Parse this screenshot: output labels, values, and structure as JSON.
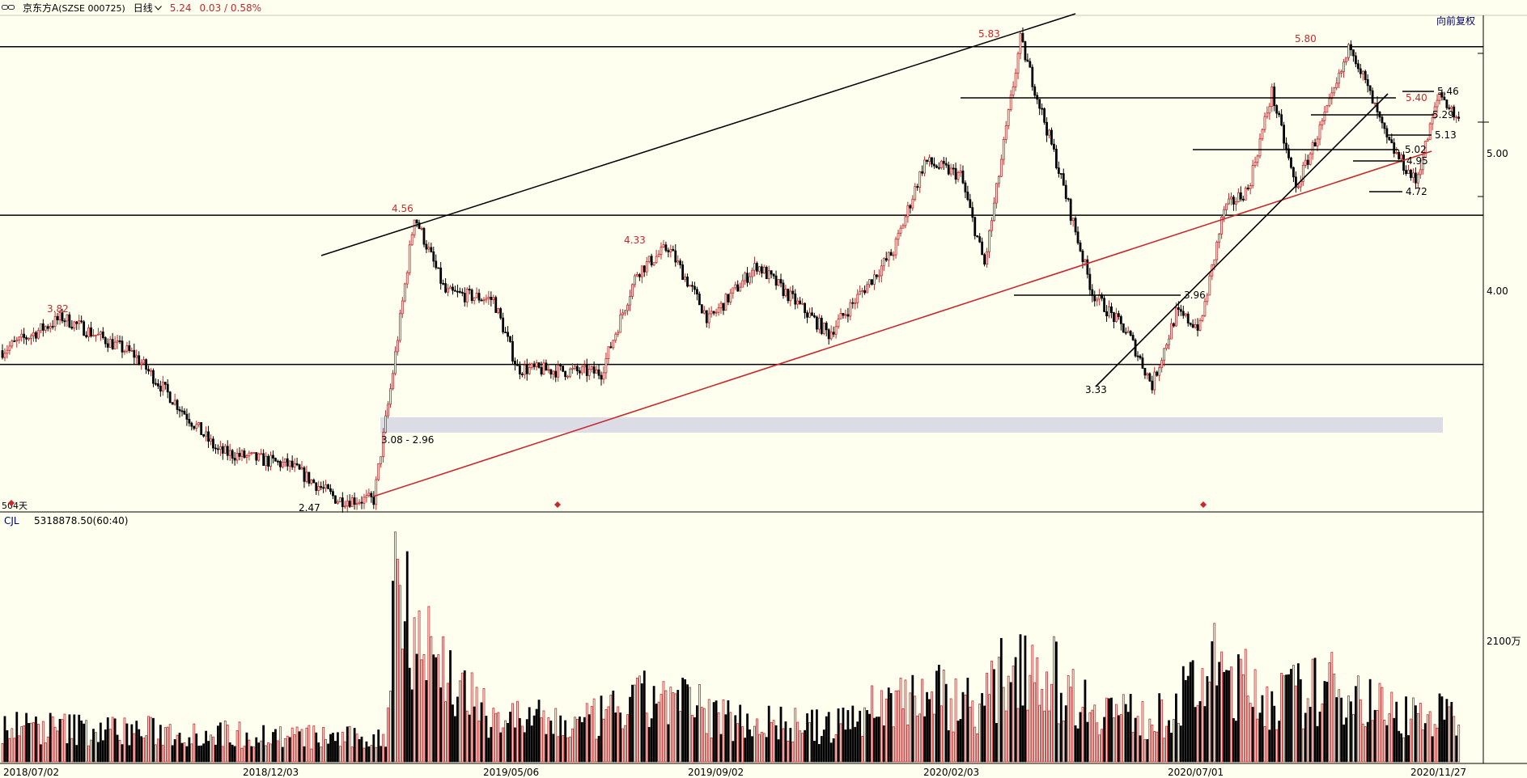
{
  "header": {
    "symbol_icon": "link-icon",
    "stock_name": "京东方A",
    "stock_code": "(SZSE 000725)",
    "period": "日线",
    "price": "5.24",
    "change": "0.03 / 0.58%"
  },
  "toolbar": {
    "adjust_label": "向前复权"
  },
  "volume_panel": {
    "indicator": "CJL",
    "value": "5318878.50(60:40)"
  },
  "marker_text": "504天",
  "colors": {
    "background": "#fffff0",
    "up": "#c0282d",
    "down": "#000000",
    "trend_red": "#c8282d",
    "zone": "#dcdce6"
  },
  "chart_data": {
    "type": "candlestick",
    "x_ticks": [
      "2018/07/02",
      "2018/12/03",
      "2019/05/06",
      "2019/09/02",
      "2020/02/03",
      "2020/07/01",
      "2020/11/27"
    ],
    "price_axis": {
      "ticks": [
        "5.00",
        "4.00"
      ]
    },
    "volume_axis": {
      "ticks": [
        "2100万"
      ]
    },
    "key_prices": [
      {
        "label": "3.82"
      },
      {
        "label": "2.47"
      },
      {
        "label": "4.56"
      },
      {
        "label": "4.33"
      },
      {
        "label": "5.83"
      },
      {
        "label": "3.33"
      },
      {
        "label": "3.96"
      },
      {
        "label": "5.80"
      },
      {
        "label": "5.46"
      },
      {
        "label": "5.40"
      },
      {
        "label": "5.29"
      },
      {
        "label": "5.13"
      },
      {
        "label": "5.02"
      },
      {
        "label": "4.95"
      },
      {
        "label": "4.72"
      }
    ],
    "zone": {
      "label": "3.08 - 2.96"
    },
    "horizontal_levels": [
      5.78,
      4.56,
      3.48
    ],
    "ohlc_anchors": [
      {
        "i": 0,
        "p": 3.58
      },
      {
        "i": 25,
        "p": 3.82
      },
      {
        "i": 55,
        "p": 3.55
      },
      {
        "i": 90,
        "p": 2.85
      },
      {
        "i": 120,
        "p": 2.75
      },
      {
        "i": 140,
        "p": 2.5
      },
      {
        "i": 155,
        "p": 2.5
      },
      {
        "i": 162,
        "p": 3.3
      },
      {
        "i": 172,
        "p": 4.56
      },
      {
        "i": 185,
        "p": 4.0
      },
      {
        "i": 205,
        "p": 3.95
      },
      {
        "i": 215,
        "p": 3.45
      },
      {
        "i": 250,
        "p": 3.42
      },
      {
        "i": 265,
        "p": 4.15
      },
      {
        "i": 278,
        "p": 4.33
      },
      {
        "i": 295,
        "p": 3.8
      },
      {
        "i": 315,
        "p": 4.2
      },
      {
        "i": 345,
        "p": 3.7
      },
      {
        "i": 372,
        "p": 4.3
      },
      {
        "i": 385,
        "p": 4.95
      },
      {
        "i": 400,
        "p": 4.85
      },
      {
        "i": 410,
        "p": 4.2
      },
      {
        "i": 425,
        "p": 5.83
      },
      {
        "i": 440,
        "p": 4.95
      },
      {
        "i": 455,
        "p": 4.0
      },
      {
        "i": 470,
        "p": 3.7
      },
      {
        "i": 480,
        "p": 3.33
      },
      {
        "i": 490,
        "p": 3.85
      },
      {
        "i": 500,
        "p": 3.75
      },
      {
        "i": 510,
        "p": 4.6
      },
      {
        "i": 520,
        "p": 4.75
      },
      {
        "i": 530,
        "p": 5.45
      },
      {
        "i": 540,
        "p": 4.75
      },
      {
        "i": 555,
        "p": 5.4
      },
      {
        "i": 563,
        "p": 5.8
      },
      {
        "i": 578,
        "p": 5.1
      },
      {
        "i": 590,
        "p": 4.8
      },
      {
        "i": 600,
        "p": 5.45
      },
      {
        "i": 608,
        "p": 5.24
      }
    ],
    "volume_anchors": [
      {
        "i": 0,
        "v": 0.16
      },
      {
        "i": 160,
        "v": 0.1
      },
      {
        "i": 164,
        "v": 0.92
      },
      {
        "i": 175,
        "v": 0.55
      },
      {
        "i": 200,
        "v": 0.22
      },
      {
        "i": 240,
        "v": 0.16
      },
      {
        "i": 275,
        "v": 0.3
      },
      {
        "i": 300,
        "v": 0.2
      },
      {
        "i": 345,
        "v": 0.15
      },
      {
        "i": 380,
        "v": 0.32
      },
      {
        "i": 410,
        "v": 0.26
      },
      {
        "i": 425,
        "v": 0.5
      },
      {
        "i": 450,
        "v": 0.28
      },
      {
        "i": 480,
        "v": 0.18
      },
      {
        "i": 495,
        "v": 0.3
      },
      {
        "i": 505,
        "v": 0.42
      },
      {
        "i": 530,
        "v": 0.28
      },
      {
        "i": 560,
        "v": 0.34
      },
      {
        "i": 580,
        "v": 0.22
      },
      {
        "i": 608,
        "v": 0.2
      }
    ]
  }
}
